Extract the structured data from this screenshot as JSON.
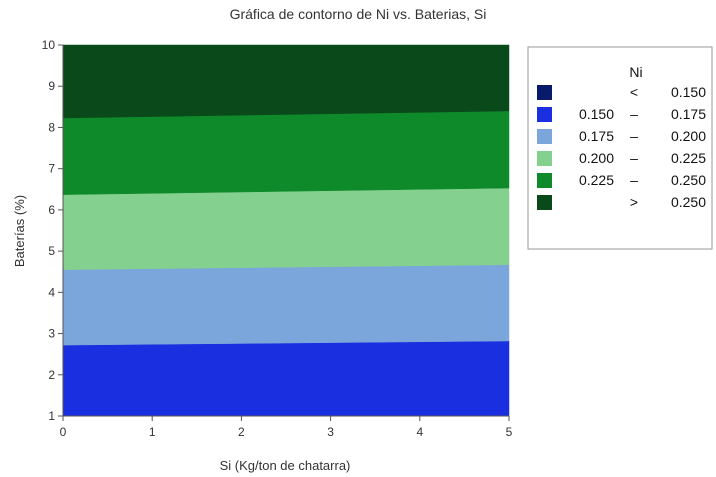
{
  "chart_data": {
    "type": "contour",
    "title": "Gráfica de contorno de Ni vs. Baterias, Si",
    "xlabel": "Si (Kg/ton de chatarra)",
    "ylabel": "Baterías (%)",
    "xlim": [
      0,
      5
    ],
    "ylim": [
      1,
      10
    ],
    "x_ticks": [
      "0",
      "1",
      "2",
      "3",
      "4",
      "5"
    ],
    "y_ticks": [
      "1",
      "2",
      "3",
      "4",
      "5",
      "6",
      "7",
      "8",
      "9",
      "10"
    ],
    "grid": false,
    "legend_position": "right",
    "legend": {
      "title": "Ni",
      "entries": [
        {
          "low": "",
          "sep": "<",
          "high": "0.150",
          "color": "#0a1a6b"
        },
        {
          "low": "0.150",
          "sep": "–",
          "high": "0.175",
          "color": "#1a2fe0"
        },
        {
          "low": "0.175",
          "sep": "–",
          "high": "0.200",
          "color": "#7ba6dc"
        },
        {
          "low": "0.200",
          "sep": "–",
          "high": "0.225",
          "color": "#84d08e"
        },
        {
          "low": "0.225",
          "sep": "–",
          "high": "0.250",
          "color": "#0e8a2a"
        },
        {
          "low": "",
          "sep": ">",
          "high": "0.250",
          "color": "#0a4a1a"
        }
      ]
    },
    "contour_lines": [
      {
        "level": "0.175",
        "x": [
          0,
          5
        ],
        "y": [
          2.72,
          2.82
        ]
      },
      {
        "level": "0.200",
        "x": [
          0,
          5
        ],
        "y": [
          4.55,
          4.67
        ]
      },
      {
        "level": "0.225",
        "x": [
          0,
          5
        ],
        "y": [
          6.37,
          6.53
        ]
      },
      {
        "level": "0.250",
        "x": [
          0,
          5
        ],
        "y": [
          8.23,
          8.4
        ]
      }
    ]
  }
}
